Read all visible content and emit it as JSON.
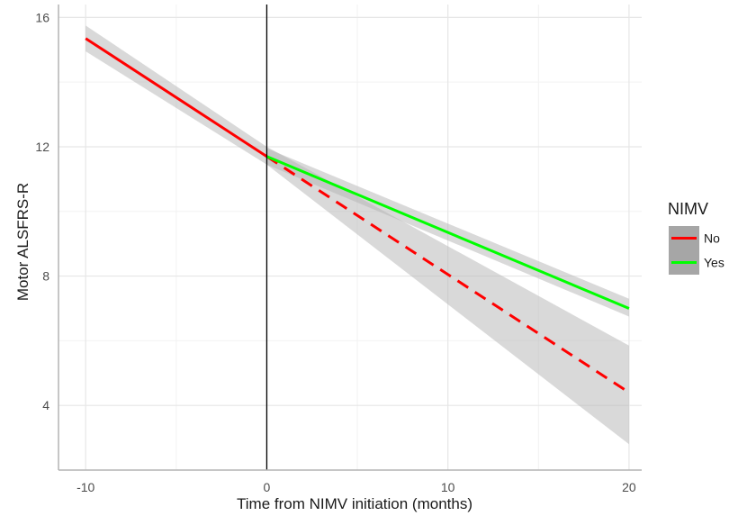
{
  "chart_data": {
    "type": "line",
    "xlabel": "Time from NIMV initiation (months)",
    "ylabel": "Motor ALSFRS-R",
    "xlim": [
      -11.5,
      20.7
    ],
    "ylim": [
      2,
      16.4
    ],
    "x_ticks": [
      -10,
      0,
      10,
      20
    ],
    "x_tick_labels": [
      "-10",
      "0",
      "10",
      "20"
    ],
    "y_ticks": [
      4,
      8,
      12,
      16
    ],
    "y_tick_labels": [
      "4",
      "8",
      "12",
      "16"
    ],
    "grid": true,
    "vline_x": 0,
    "legend": {
      "title": "NIMV",
      "position": "right",
      "entries": [
        "No",
        "Yes"
      ]
    },
    "series": [
      {
        "name": "No",
        "color": "#ff0000",
        "segments": [
          {
            "style": "solid",
            "x": [
              -10,
              0
            ],
            "y": [
              15.35,
              11.7
            ],
            "lower": [
              14.95,
              11.45
            ],
            "upper": [
              15.75,
              12.0
            ]
          },
          {
            "style": "dashed",
            "x": [
              0,
              20
            ],
            "y": [
              11.7,
              4.4
            ],
            "lower": [
              11.45,
              2.8
            ],
            "upper": [
              12.0,
              5.85
            ]
          }
        ]
      },
      {
        "name": "Yes",
        "color": "#00ff00",
        "segments": [
          {
            "style": "solid",
            "x": [
              0,
              20
            ],
            "y": [
              11.7,
              7.0
            ],
            "lower": [
              11.45,
              6.75
            ],
            "upper": [
              11.95,
              7.3
            ]
          }
        ]
      }
    ]
  }
}
